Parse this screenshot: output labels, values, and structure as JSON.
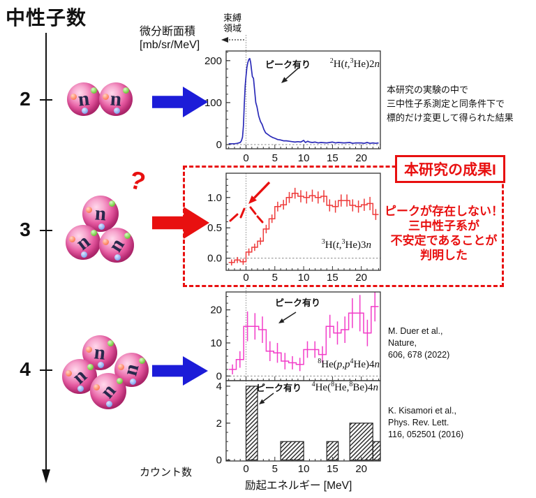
{
  "figure_title": "中性子数",
  "left_axis": {
    "tick_labels": [
      "2",
      "3",
      "4"
    ]
  },
  "neutron": {
    "letter": "n"
  },
  "labels": {
    "question_mark": "?",
    "yaxis_title": [
      "微分断面積",
      "[mb/sr/MeV]"
    ],
    "bound_region": [
      "束縛",
      "領域"
    ],
    "counts": "カウント数",
    "x_title": "励起エネルギー [MeV]"
  },
  "annotations": {
    "peak_label": "ピーク有り",
    "top_note": [
      "本研究の実験の中で",
      "三中性子系測定と同条件下で",
      "標的だけ変更して得られた結果"
    ],
    "result_box_title": "本研究の成果I",
    "result_message": [
      "ピークが存在しない！",
      "三中性子系が",
      "不安定であることが",
      "判明した"
    ],
    "ref_nature": [
      "M. Duer et al.,",
      "Nature,",
      "606, 678 (2022)"
    ],
    "ref_prl": [
      "K. Kisamori et al.,",
      "Phys. Rev. Lett.",
      "116, 052501 (2016)"
    ]
  },
  "colors": {
    "accent_red": "#e81010",
    "arrow_blue": "#1c1cd8",
    "curve_blue": "#2a2ab8",
    "hist_red": "#ee3a3a",
    "hist_magenta": "#f23cc8",
    "ball_pink": "#e75ba2"
  },
  "chart_data": [
    {
      "id": "2H-t-3He-2n",
      "type": "line",
      "reaction_segments": [
        [
          "s",
          "2"
        ],
        [
          "t",
          "H("
        ],
        [
          "i",
          "t"
        ],
        [
          "t",
          ","
        ],
        [
          "s",
          "3"
        ],
        [
          "t",
          "He)2"
        ],
        [
          "i",
          "n"
        ]
      ],
      "ylabel": "微分断面積 [mb/sr/MeV]",
      "xlabel": "励起エネルギー [MeV]",
      "color": "#2a2ab8",
      "xlim": [
        -3.45,
        23.3
      ],
      "ylim": [
        -10,
        223
      ],
      "x_ticks": [
        0,
        5,
        10,
        15,
        20
      ],
      "y_ticks": [
        0,
        100,
        200
      ],
      "zero_dashed": true,
      "has_peak": true,
      "points": [
        [
          -3,
          2
        ],
        [
          -2.5,
          2
        ],
        [
          -2,
          2
        ],
        [
          -1.5,
          3
        ],
        [
          -1,
          5
        ],
        [
          -0.8,
          9
        ],
        [
          -0.6,
          18
        ],
        [
          -0.45,
          45
        ],
        [
          -0.3,
          95
        ],
        [
          -0.15,
          140
        ],
        [
          0,
          163
        ],
        [
          0.15,
          183
        ],
        [
          0.3,
          195
        ],
        [
          0.5,
          203
        ],
        [
          0.65,
          205
        ],
        [
          0.8,
          196
        ],
        [
          0.95,
          178
        ],
        [
          1.1,
          162
        ],
        [
          1.3,
          158
        ],
        [
          1.5,
          128
        ],
        [
          1.7,
          100
        ],
        [
          1.9,
          90
        ],
        [
          2.2,
          68
        ],
        [
          2.5,
          55
        ],
        [
          2.8,
          48
        ],
        [
          3.1,
          36
        ],
        [
          3.4,
          28
        ],
        [
          3.8,
          24
        ],
        [
          4.2,
          20
        ],
        [
          4.6,
          17
        ],
        [
          5,
          15
        ],
        [
          5.5,
          12
        ],
        [
          6,
          11
        ],
        [
          6.5,
          9
        ],
        [
          7,
          9
        ],
        [
          7.5,
          8
        ],
        [
          8,
          7
        ],
        [
          8.5,
          6
        ],
        [
          9,
          7
        ],
        [
          9.5,
          6
        ],
        [
          10,
          10
        ],
        [
          10.3,
          5
        ],
        [
          10.7,
          8
        ],
        [
          11,
          6
        ],
        [
          11.5,
          5
        ],
        [
          12,
          6
        ],
        [
          12.5,
          4
        ],
        [
          13,
          5
        ],
        [
          14,
          4
        ],
        [
          15,
          6
        ],
        [
          15.5,
          4
        ],
        [
          16,
          5
        ],
        [
          17,
          4
        ],
        [
          18,
          5
        ],
        [
          18.5,
          3
        ],
        [
          19,
          4
        ],
        [
          20,
          4
        ],
        [
          20.5,
          3
        ],
        [
          21,
          5
        ],
        [
          21.5,
          3
        ],
        [
          22,
          4
        ],
        [
          22.5,
          3
        ],
        [
          23,
          4
        ]
      ]
    },
    {
      "id": "3H-t-3He-3n",
      "type": "step-error",
      "reaction_segments": [
        [
          "s",
          "3"
        ],
        [
          "t",
          "H("
        ],
        [
          "i",
          "t"
        ],
        [
          "t",
          ","
        ],
        [
          "s",
          "3"
        ],
        [
          "t",
          "He)3"
        ],
        [
          "i",
          "n"
        ]
      ],
      "xlabel": "励起エネルギー [MeV]",
      "color": "#ee3a3a",
      "xlim": [
        -3.45,
        23.3
      ],
      "ylim": [
        -0.2,
        1.4
      ],
      "x_ticks": [
        0,
        5,
        10,
        15,
        20
      ],
      "y_ticks": [
        0,
        0.5,
        1
      ],
      "y_tick_labels": [
        "0.0",
        "0.5",
        "1.0"
      ],
      "zero_dashed": true,
      "has_peak": false,
      "bin_start": -3,
      "bin_width": 1,
      "values": [
        -0.07,
        -0.03,
        -0.06,
        0.1,
        0.18,
        0.28,
        0.48,
        0.65,
        0.85,
        0.88,
        1.0,
        1.07,
        1.02,
        1.0,
        1.03,
        1.0,
        1.02,
        0.87,
        0.85,
        0.95,
        0.95,
        0.87,
        0.85,
        0.88,
        0.9,
        0.72
      ],
      "errors": [
        0.05,
        0.05,
        0.05,
        0.06,
        0.06,
        0.06,
        0.07,
        0.07,
        0.08,
        0.08,
        0.09,
        0.09,
        0.1,
        0.1,
        0.1,
        0.1,
        0.1,
        0.1,
        0.1,
        0.1,
        0.1,
        0.1,
        0.1,
        0.1,
        0.11,
        0.09
      ]
    },
    {
      "id": "8He-p-p4He-4n",
      "type": "step-error",
      "reaction_segments": [
        [
          "s",
          "8"
        ],
        [
          "t",
          "He("
        ],
        [
          "i",
          "p"
        ],
        [
          "t",
          ","
        ],
        [
          "i",
          "p"
        ],
        [
          "s",
          "4"
        ],
        [
          "t",
          "He)4"
        ],
        [
          "i",
          "n"
        ]
      ],
      "xlabel": "励起エネルギー [MeV]",
      "color": "#f23cc8",
      "xlim": [
        -3.45,
        23.3
      ],
      "ylim": [
        -1.4,
        25.4
      ],
      "x_ticks": [
        0,
        5,
        10,
        15,
        20
      ],
      "y_ticks": [
        0,
        10,
        20
      ],
      "zero_dashed": true,
      "has_peak": true,
      "bin_start": -3,
      "bin_width": 1.3,
      "values": [
        2,
        5,
        15,
        15,
        14,
        7.5,
        7,
        4.5,
        4,
        3.5,
        8,
        8,
        6.5,
        15,
        13,
        14,
        19,
        19,
        13,
        21
      ],
      "errors": [
        1.5,
        2.5,
        4.5,
        4,
        4,
        3,
        3,
        2.5,
        2,
        2,
        2.5,
        2.5,
        2.5,
        3.5,
        3.5,
        4,
        4.5,
        5.5,
        4,
        4.5
      ]
    },
    {
      "id": "4He-8He-8Be-4n",
      "type": "hatched-bars",
      "reaction_segments": [
        [
          "s",
          "4"
        ],
        [
          "t",
          "He("
        ],
        [
          "s",
          "8"
        ],
        [
          "t",
          "He,"
        ],
        [
          "s",
          "8"
        ],
        [
          "t",
          "Be)4"
        ],
        [
          "i",
          "n"
        ]
      ],
      "ylabel": "カウント数",
      "xlabel": "励起エネルギー [MeV]",
      "color": "#222222",
      "xlim": [
        -3.45,
        23.3
      ],
      "ylim": [
        -0.05,
        4.3
      ],
      "x_ticks": [
        0,
        5,
        10,
        15,
        20
      ],
      "y_ticks": [
        0,
        2,
        4
      ],
      "zero_dashed": false,
      "has_peak": true,
      "bars": [
        [
          0,
          2,
          4
        ],
        [
          6,
          10,
          1
        ],
        [
          14,
          16,
          1
        ],
        [
          18,
          22,
          2
        ],
        [
          22,
          23.3,
          1
        ]
      ]
    }
  ]
}
